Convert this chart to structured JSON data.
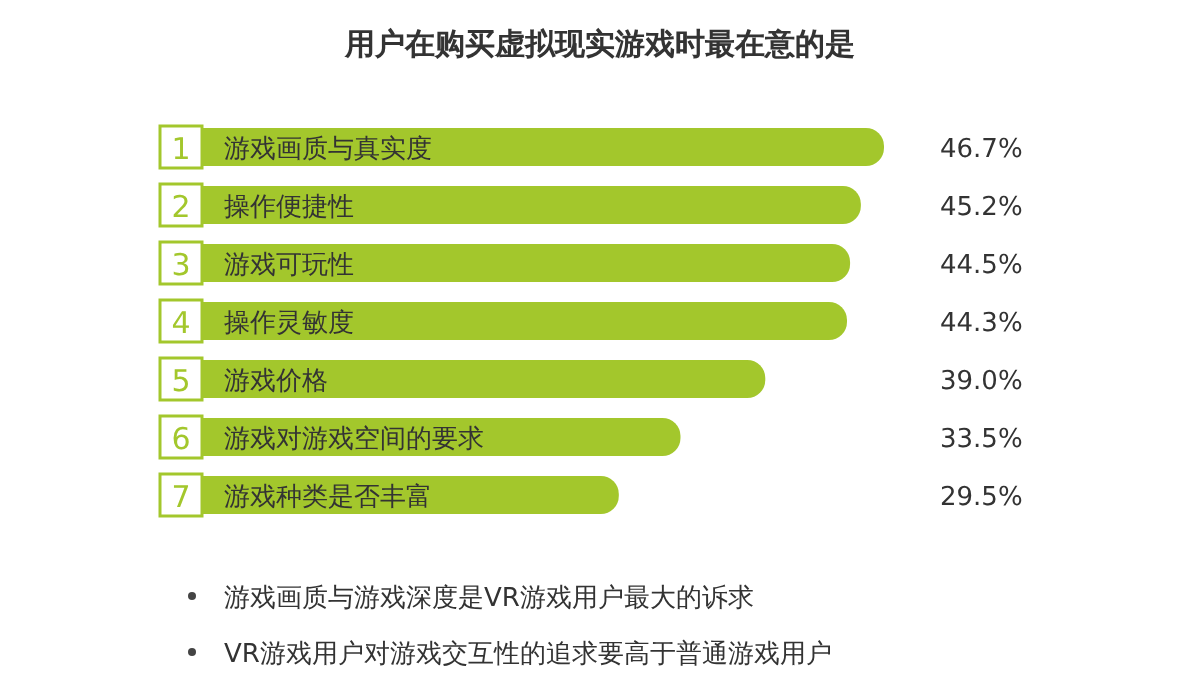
{
  "chart_data": {
    "type": "bar",
    "orientation": "horizontal",
    "title": "用户在购买虚拟现实游戏时最在意的是",
    "categories": [
      "游戏画质与真实度",
      "操作便捷性",
      "游戏可玩性",
      "操作灵敏度",
      "游戏价格",
      "游戏对游戏空间的要求",
      "游戏种类是否丰富"
    ],
    "values": [
      46.7,
      45.2,
      44.5,
      44.3,
      39.0,
      33.5,
      29.5
    ],
    "value_labels": [
      "46.7%",
      "45.2%",
      "44.5%",
      "44.3%",
      "39.0%",
      "33.5%",
      "29.5%"
    ],
    "color": "#a3c72c",
    "annotations": [
      {
        "text": "1",
        "y": "游戏画质与真实度"
      },
      {
        "text": "2",
        "y": "操作便捷性"
      },
      {
        "text": "3",
        "y": "游戏可玩性"
      },
      {
        "text": "4",
        "y": "操作灵敏度"
      },
      {
        "text": "5",
        "y": "游戏价格"
      },
      {
        "text": "6",
        "y": "游戏对游戏空间的要求"
      },
      {
        "text": "7",
        "y": "游戏种类是否丰富"
      },
      "游戏画质与游戏深度是VR游戏用户最大的诉求",
      "VR游戏用户对游戏交互性的追求要高于普通游戏用户"
    ]
  }
}
